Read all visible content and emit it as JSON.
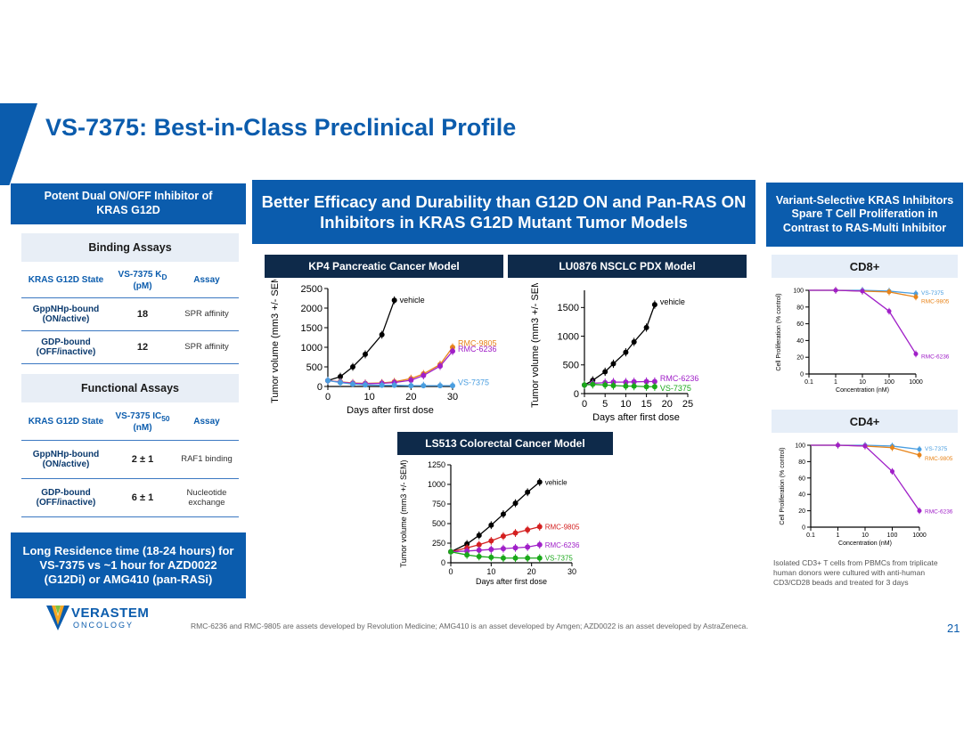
{
  "slide": {
    "title": "VS-7375: Best-in-Class Preclinical Profile",
    "page_number": "21",
    "footnote": "RMC-6236 and RMC-9805 are assets developed by Revolution Medicine; AMG410 is an asset developed by Amgen; AZD0022 is an asset developed by AstraZeneca.",
    "logo": {
      "name": "VERASTEM",
      "sub": "ONCOLOGY"
    }
  },
  "left_panel": {
    "header": "Potent Dual ON/OFF Inhibitor of KRAS G12D",
    "binding": {
      "title": "Binding Assays",
      "col1": "KRAS G12D State",
      "col2": "VS-7375 K",
      "col2_sub": "D",
      "col2_suffix": " (pM)",
      "col3": "Assay",
      "rows": [
        {
          "state": "GppNHp-bound (ON/active)",
          "value": "18",
          "assay": "SPR affinity"
        },
        {
          "state": "GDP-bound (OFF/inactive)",
          "value": "12",
          "assay": "SPR affinity"
        }
      ]
    },
    "functional": {
      "title": "Functional Assays",
      "col1": "KRAS G12D State",
      "col2": "VS-7375 IC",
      "col2_sub": "50",
      "col2_suffix": " (nM)",
      "col3": "Assay",
      "rows": [
        {
          "state": "GppNHp-bound (ON/active)",
          "value": "2 ± 1",
          "assay": "RAF1 binding"
        },
        {
          "state": "GDP-bound (OFF/inactive)",
          "value": "6 ± 1",
          "assay": "Nucleotide exchange"
        }
      ]
    },
    "residence": "Long Residence time (18-24 hours) for VS-7375 vs ~1 hour for AZD0022 (G12Di) or AMG410 (pan-RASi)"
  },
  "middle_panel": {
    "header": "Better Efficacy and Durability than G12D ON and Pan-RAS ON Inhibitors in KRAS G12D Mutant Tumor Models",
    "chart_titles": [
      "KP4 Pancreatic Cancer Model",
      "LU0876 NSCLC PDX Model",
      "LS513 Colorectal Cancer Model"
    ]
  },
  "right_panel": {
    "header": "Variant-Selective KRAS Inhibitors Spare T Cell Proliferation in Contrast to RAS-Multi Inhibitor",
    "chart_titles": [
      "CD8+",
      "CD4+"
    ],
    "note": "Isolated CD3+ T cells from PBMCs from triplicate human donors were cultured with anti-human CD3/CD28 beads and treated for 3 days"
  },
  "colors": {
    "vehicle": "#000000",
    "rmc9805": "#e8841a",
    "rmc9805_ls": "#d42020",
    "rmc6236": "#a020c8",
    "vs7375": "#4a9ee0",
    "vs7375_green": "#1aa81a"
  },
  "chart_data": [
    {
      "type": "line",
      "xlabel": "Days after first dose",
      "ylabel": "Tumor volume (mm3 +/- SEM)",
      "xlim": [
        0,
        30
      ],
      "ylim": [
        0,
        2500
      ],
      "xticks": [
        0,
        10,
        20,
        30
      ],
      "yticks": [
        0,
        500,
        1000,
        1500,
        2000,
        2500
      ],
      "series": [
        {
          "name": "vehicle",
          "color": "#000000",
          "label_y": 2200,
          "x": [
            0,
            3,
            6,
            9,
            13,
            16
          ],
          "y": [
            150,
            250,
            500,
            820,
            1320,
            2200
          ]
        },
        {
          "name": "RMC-9805",
          "color": "#e8841a",
          "label_y": 1100,
          "x": [
            0,
            3,
            6,
            9,
            13,
            16,
            20,
            23,
            27,
            30
          ],
          "y": [
            150,
            120,
            90,
            80,
            90,
            120,
            200,
            320,
            560,
            1000
          ]
        },
        {
          "name": "RMC-6236",
          "color": "#a020c8",
          "label_y": 950,
          "x": [
            0,
            3,
            6,
            9,
            13,
            16,
            20,
            23,
            27,
            30
          ],
          "y": [
            150,
            110,
            80,
            70,
            80,
            100,
            160,
            280,
            520,
            900
          ]
        },
        {
          "name": "VS-7375",
          "color": "#4a9ee0",
          "label_y": 100,
          "x": [
            0,
            3,
            6,
            9,
            13,
            16,
            20,
            23,
            27,
            30
          ],
          "y": [
            150,
            100,
            60,
            40,
            30,
            30,
            20,
            20,
            20,
            20
          ]
        }
      ]
    },
    {
      "type": "line",
      "xlabel": "Days after first dose",
      "ylabel": "Tumor volume (mm3 +/- SEM)",
      "xlim": [
        0,
        25
      ],
      "ylim": [
        0,
        1800
      ],
      "xticks": [
        0,
        5,
        10,
        15,
        20,
        25
      ],
      "yticks": [
        0,
        500,
        1000,
        1500
      ],
      "series": [
        {
          "name": "vehicle",
          "color": "#000000",
          "label_y": 1600,
          "x": [
            0,
            2,
            5,
            7,
            10,
            12,
            15,
            17
          ],
          "y": [
            150,
            230,
            380,
            520,
            720,
            900,
            1150,
            1550
          ]
        },
        {
          "name": "RMC-6236",
          "color": "#a020c8",
          "label_y": 260,
          "x": [
            0,
            2,
            5,
            7,
            10,
            12,
            15,
            17
          ],
          "y": [
            150,
            180,
            190,
            200,
            200,
            205,
            210,
            210
          ]
        },
        {
          "name": "VS-7375",
          "color": "#1aa81a",
          "label_y": 90,
          "x": [
            0,
            2,
            5,
            7,
            10,
            12,
            15,
            17
          ],
          "y": [
            150,
            160,
            150,
            140,
            130,
            130,
            120,
            120
          ]
        }
      ]
    },
    {
      "type": "line",
      "xlabel": "Days after first dose",
      "ylabel": "Tumor volume (mm3 +/- SEM)",
      "xlim": [
        0,
        30
      ],
      "ylim": [
        0,
        1250
      ],
      "xticks": [
        0,
        10,
        20,
        30
      ],
      "yticks": [
        0,
        250,
        500,
        750,
        1000,
        1250
      ],
      "series": [
        {
          "name": "vehicle",
          "color": "#000000",
          "label_y": 1030,
          "x": [
            0,
            4,
            7,
            10,
            13,
            16,
            19,
            22
          ],
          "y": [
            140,
            240,
            350,
            480,
            620,
            760,
            900,
            1030
          ]
        },
        {
          "name": "RMC-9805",
          "color": "#d42020",
          "label_y": 460,
          "x": [
            0,
            4,
            7,
            10,
            13,
            16,
            19,
            22
          ],
          "y": [
            140,
            190,
            230,
            280,
            340,
            380,
            420,
            460
          ]
        },
        {
          "name": "RMC-6236",
          "color": "#a020c8",
          "label_y": 230,
          "x": [
            0,
            4,
            7,
            10,
            13,
            16,
            19,
            22
          ],
          "y": [
            140,
            150,
            160,
            170,
            180,
            190,
            200,
            230
          ]
        },
        {
          "name": "VS-7375",
          "color": "#1aa81a",
          "label_y": 60,
          "x": [
            0,
            4,
            7,
            10,
            13,
            16,
            19,
            22
          ],
          "y": [
            140,
            100,
            80,
            70,
            60,
            60,
            60,
            60
          ]
        }
      ]
    },
    {
      "type": "line",
      "scale": "log-x",
      "xlabel": "Concentration (nM)",
      "ylabel": "Cell Proliferation (% control)",
      "xlim": [
        0.1,
        1000
      ],
      "ylim": [
        0,
        100
      ],
      "xticks": [
        0.1,
        1,
        10,
        100,
        1000
      ],
      "xtick_labels": [
        "0.1",
        "1",
        "10",
        "100",
        "1000"
      ],
      "yticks": [
        0,
        20,
        40,
        60,
        80,
        100
      ],
      "series": [
        {
          "name": "VS-7375",
          "color": "#4a9ee0",
          "label_y": 98,
          "x": [
            1,
            10,
            100,
            1000
          ],
          "y": [
            100,
            100,
            99,
            96
          ]
        },
        {
          "name": "RMC-9805",
          "color": "#e8841a",
          "label_y": 88,
          "x": [
            1,
            10,
            100,
            1000
          ],
          "y": [
            100,
            99,
            98,
            92
          ]
        },
        {
          "name": "RMC-6236",
          "color": "#a020c8",
          "label_y": 22,
          "x": [
            1,
            10,
            100,
            1000
          ],
          "y": [
            100,
            99,
            75,
            24
          ]
        }
      ]
    },
    {
      "type": "line",
      "scale": "log-x",
      "xlabel": "Concentration (nM)",
      "ylabel": "Cell Proliferation (% control)",
      "xlim": [
        0.1,
        1000
      ],
      "ylim": [
        0,
        100
      ],
      "xticks": [
        0.1,
        1,
        10,
        100,
        1000
      ],
      "xtick_labels": [
        "0.1",
        "1",
        "10",
        "100",
        "1000"
      ],
      "yticks": [
        0,
        20,
        40,
        60,
        80,
        100
      ],
      "series": [
        {
          "name": "VS-7375",
          "color": "#4a9ee0",
          "label_y": 97,
          "x": [
            1,
            10,
            100,
            1000
          ],
          "y": [
            100,
            100,
            99,
            95
          ]
        },
        {
          "name": "RMC-9805",
          "color": "#e8841a",
          "label_y": 85,
          "x": [
            1,
            10,
            100,
            1000
          ],
          "y": [
            100,
            99,
            97,
            88
          ]
        },
        {
          "name": "RMC-6236",
          "color": "#a020c8",
          "label_y": 20,
          "x": [
            1,
            10,
            100,
            1000
          ],
          "y": [
            100,
            99,
            68,
            20
          ]
        }
      ]
    }
  ]
}
